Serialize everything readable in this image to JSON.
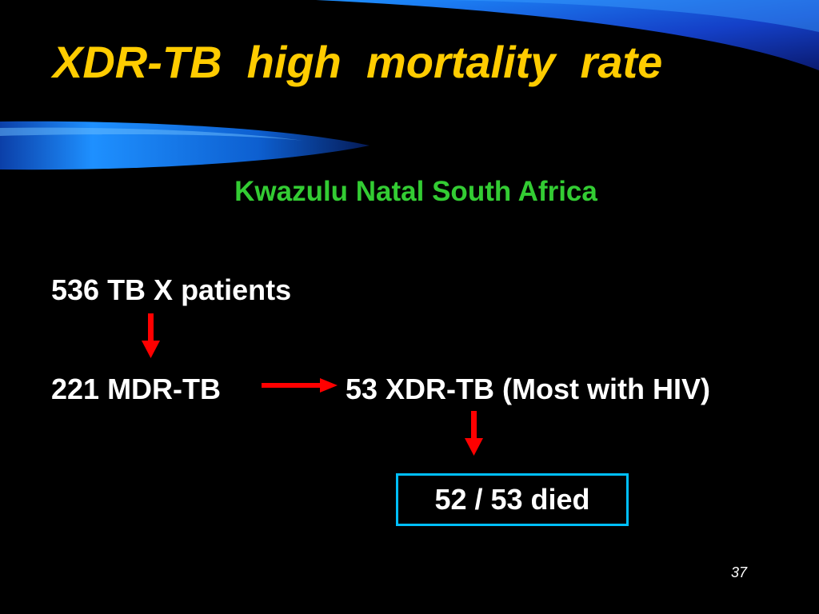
{
  "slide": {
    "title": "XDR-TB  high  mortality  rate",
    "subtitle": "Kwazulu Natal South Africa",
    "page_number": "37"
  },
  "flow": {
    "nodes": [
      {
        "id": "patients",
        "label": "536 TB X patients"
      },
      {
        "id": "mdr",
        "label": "221 MDR-TB"
      },
      {
        "id": "xdr",
        "label": "53 XDR-TB (Most with HIV)"
      },
      {
        "id": "died",
        "label": "52 / 53 died"
      }
    ],
    "edges": [
      {
        "from": "patients",
        "to": "mdr"
      },
      {
        "from": "mdr",
        "to": "xdr"
      },
      {
        "from": "xdr",
        "to": "died"
      }
    ]
  },
  "colors": {
    "background": "#000000",
    "title": "#ffcc00",
    "subtitle": "#33cc33",
    "text": "#ffffff",
    "arrow": "#ff0000",
    "box_border": "#00bfff",
    "accent_blue": "#1e90ff"
  }
}
